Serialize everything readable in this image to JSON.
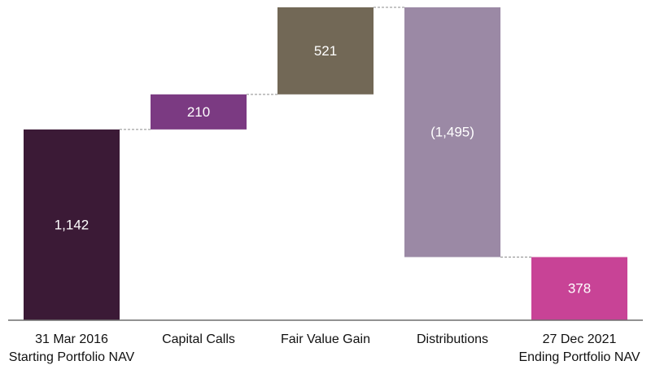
{
  "chart_data": {
    "type": "bar",
    "subtype": "waterfall",
    "title": "",
    "xlabel": "",
    "ylabel": "",
    "categories": [
      [
        "31 Mar 2016",
        "Starting Portfolio NAV"
      ],
      [
        "Capital Calls"
      ],
      [
        "Fair Value Gain"
      ],
      [
        "Distributions"
      ],
      [
        "27 Dec 2021",
        "Ending Portfolio NAV"
      ]
    ],
    "values": [
      1142,
      210,
      521,
      -1495,
      378
    ],
    "value_labels": [
      "1,142",
      "210",
      "521",
      "(1,495)",
      "378"
    ],
    "kinds": [
      "total",
      "delta",
      "delta",
      "delta",
      "total"
    ],
    "colors": [
      "#3b1a36",
      "#7b3a82",
      "#726856",
      "#9b89a5",
      "#c84396"
    ],
    "ylim": [
      0,
      1873
    ],
    "grid": false,
    "legend": "none",
    "connectors": "dashed"
  }
}
